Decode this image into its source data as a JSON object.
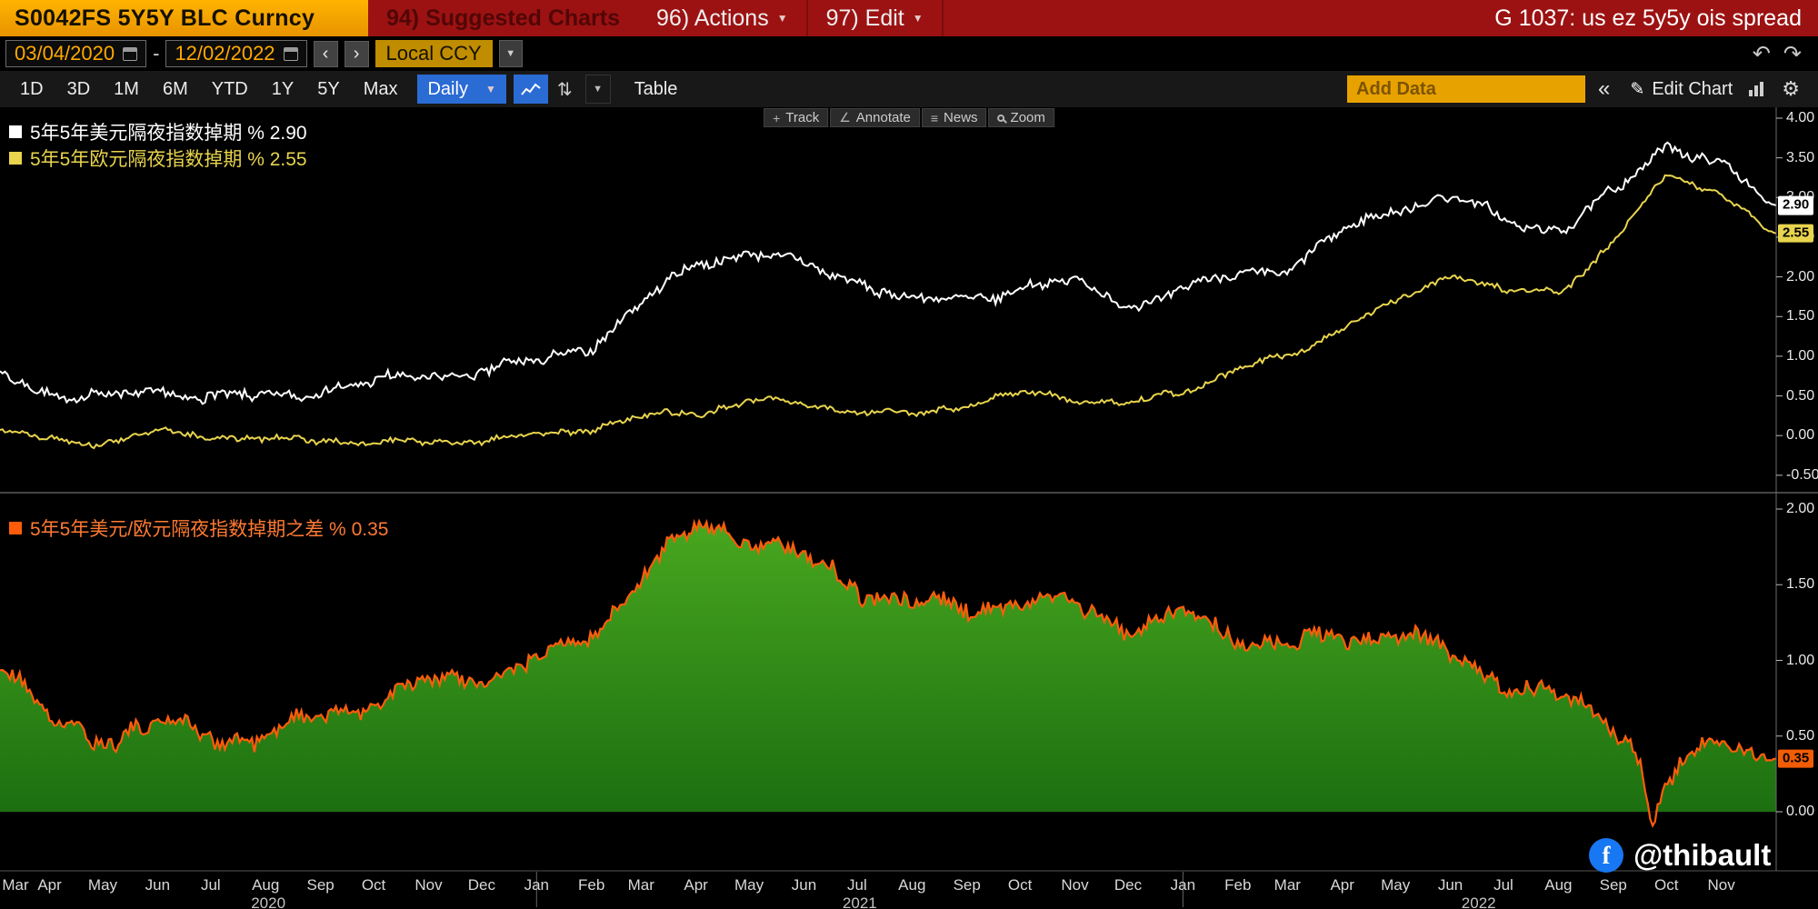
{
  "colors": {
    "titlebar_red": "#9c1212",
    "amber": "#f2a900",
    "blue_accent": "#2b6bd4",
    "usd_line": "#ffffff",
    "eur_line": "#e8d44d",
    "spread_line": "#ff5c0a",
    "spread_fill": "#2f8f1a"
  },
  "title_bar": {
    "security": "S0042FS 5Y5Y BLC Curncy",
    "suggested_charts": "94) Suggested Charts",
    "actions": "96) Actions",
    "edit": "97) Edit",
    "function_label": "G 1037: us ez 5y5y ois spread"
  },
  "date_bar": {
    "start_date": "03/04/2020",
    "separator": "-",
    "end_date": "12/02/2022",
    "currency_mode": "Local CCY"
  },
  "toolbar": {
    "periods": [
      "1D",
      "3D",
      "1M",
      "6M",
      "YTD",
      "1Y",
      "5Y",
      "Max"
    ],
    "frequency": "Daily",
    "table": "Table",
    "add_data": "Add Data",
    "collapse": "«",
    "edit_chart": "Edit Chart"
  },
  "chart_tools": {
    "track": "Track",
    "annotate": "Annotate",
    "news": "News",
    "zoom": "Zoom"
  },
  "panels": {
    "top": {
      "legend": [
        {
          "label": "5年5年美元隔夜指数掉期",
          "unit": "%",
          "value": "2.90",
          "color": "#ffffff"
        },
        {
          "label": "5年5年欧元隔夜指数掉期",
          "unit": "%",
          "value": "2.55",
          "color": "#e8d44d"
        }
      ],
      "axis_ticks": [
        "4.00",
        "3.50",
        "3.00",
        "2.50",
        "2.00",
        "1.50",
        "1.00",
        "0.50",
        "0.00",
        "-0.50"
      ],
      "badges": [
        {
          "value": "2.90",
          "bg": "#ffffff"
        },
        {
          "value": "2.55",
          "bg": "#e8d44d"
        }
      ]
    },
    "bottom": {
      "legend": [
        {
          "label": "5年5年美元/欧元隔夜指数掉期之差",
          "unit": "%",
          "value": "0.35",
          "color": "#ff5c0a"
        }
      ],
      "axis_ticks": [
        "2.00",
        "1.50",
        "1.00",
        "0.50",
        "0.00"
      ],
      "badges": [
        {
          "value": "0.35",
          "bg": "#f25c05"
        }
      ]
    }
  },
  "x_axis": {
    "months": [
      "Mar",
      "Apr",
      "May",
      "Jun",
      "Jul",
      "Aug",
      "Sep",
      "Oct",
      "Nov",
      "Dec",
      "Jan",
      "Feb",
      "Mar",
      "Apr",
      "May",
      "Jun",
      "Jul",
      "Aug",
      "Sep",
      "Oct",
      "Nov",
      "Dec",
      "Jan",
      "Feb",
      "Mar",
      "Apr",
      "May",
      "Jun",
      "Jul",
      "Aug",
      "Sep",
      "Oct",
      "Nov"
    ],
    "years": [
      {
        "label": "2020",
        "span": [
          0,
          9
        ]
      },
      {
        "label": "2021",
        "span": [
          10,
          21
        ]
      },
      {
        "label": "2022",
        "span": [
          22,
          32
        ]
      }
    ]
  },
  "watermark": {
    "handle": "@thibault",
    "icon": "facebook-logo"
  },
  "chart_data": {
    "type": "line",
    "x_start": "03/04/2020",
    "x_end": "12/02/2022",
    "x_unit": "monthly anchor values Mar 2020 - Nov 2022, final entry = value at end date",
    "top_panel": {
      "ylim": [
        -0.5,
        4.0
      ],
      "series": [
        {
          "name": "5年5年美元隔夜指数掉期",
          "color": "#ffffff",
          "last": 2.9,
          "values": [
            0.8,
            0.52,
            0.47,
            0.56,
            0.5,
            0.46,
            0.6,
            0.66,
            0.76,
            0.82,
            0.92,
            1.15,
            1.7,
            2.2,
            2.32,
            2.12,
            1.95,
            1.68,
            1.72,
            1.88,
            1.92,
            1.66,
            1.82,
            2.05,
            2.12,
            2.58,
            2.9,
            3.0,
            2.7,
            2.6,
            3.05,
            3.7,
            3.4,
            2.9
          ]
        },
        {
          "name": "5年5年欧元隔夜指数掉期",
          "color": "#e8d44d",
          "last": 2.55,
          "values": [
            0.05,
            -0.05,
            -0.08,
            0.04,
            0.0,
            -0.06,
            -0.05,
            -0.1,
            -0.08,
            -0.05,
            0.0,
            0.1,
            0.24,
            0.3,
            0.44,
            0.4,
            0.3,
            0.26,
            0.4,
            0.54,
            0.46,
            0.4,
            0.56,
            0.85,
            1.0,
            1.4,
            1.7,
            2.05,
            1.8,
            1.82,
            2.45,
            3.3,
            3.05,
            2.55
          ]
        }
      ]
    },
    "bottom_panel": {
      "ylim": [
        -0.3,
        2.0
      ],
      "series": [
        {
          "name": "5年5年美元/欧元隔夜指数掉期之差",
          "color": "#ff5c0a",
          "fill": "#2f8f1a",
          "last": 0.35,
          "values": [
            1.0,
            0.56,
            0.5,
            0.58,
            0.5,
            0.5,
            0.64,
            0.74,
            0.84,
            0.9,
            1.0,
            1.18,
            1.58,
            1.9,
            1.82,
            1.66,
            1.48,
            1.36,
            1.34,
            1.4,
            1.36,
            1.22,
            1.3,
            1.16,
            1.1,
            1.15,
            1.2,
            1.0,
            0.86,
            0.76,
            0.56,
            0.22,
            0.48,
            0.35
          ],
          "dips": [
            {
              "t": 30.7,
              "dv": -0.4,
              "w": 0.16
            }
          ]
        }
      ]
    }
  }
}
